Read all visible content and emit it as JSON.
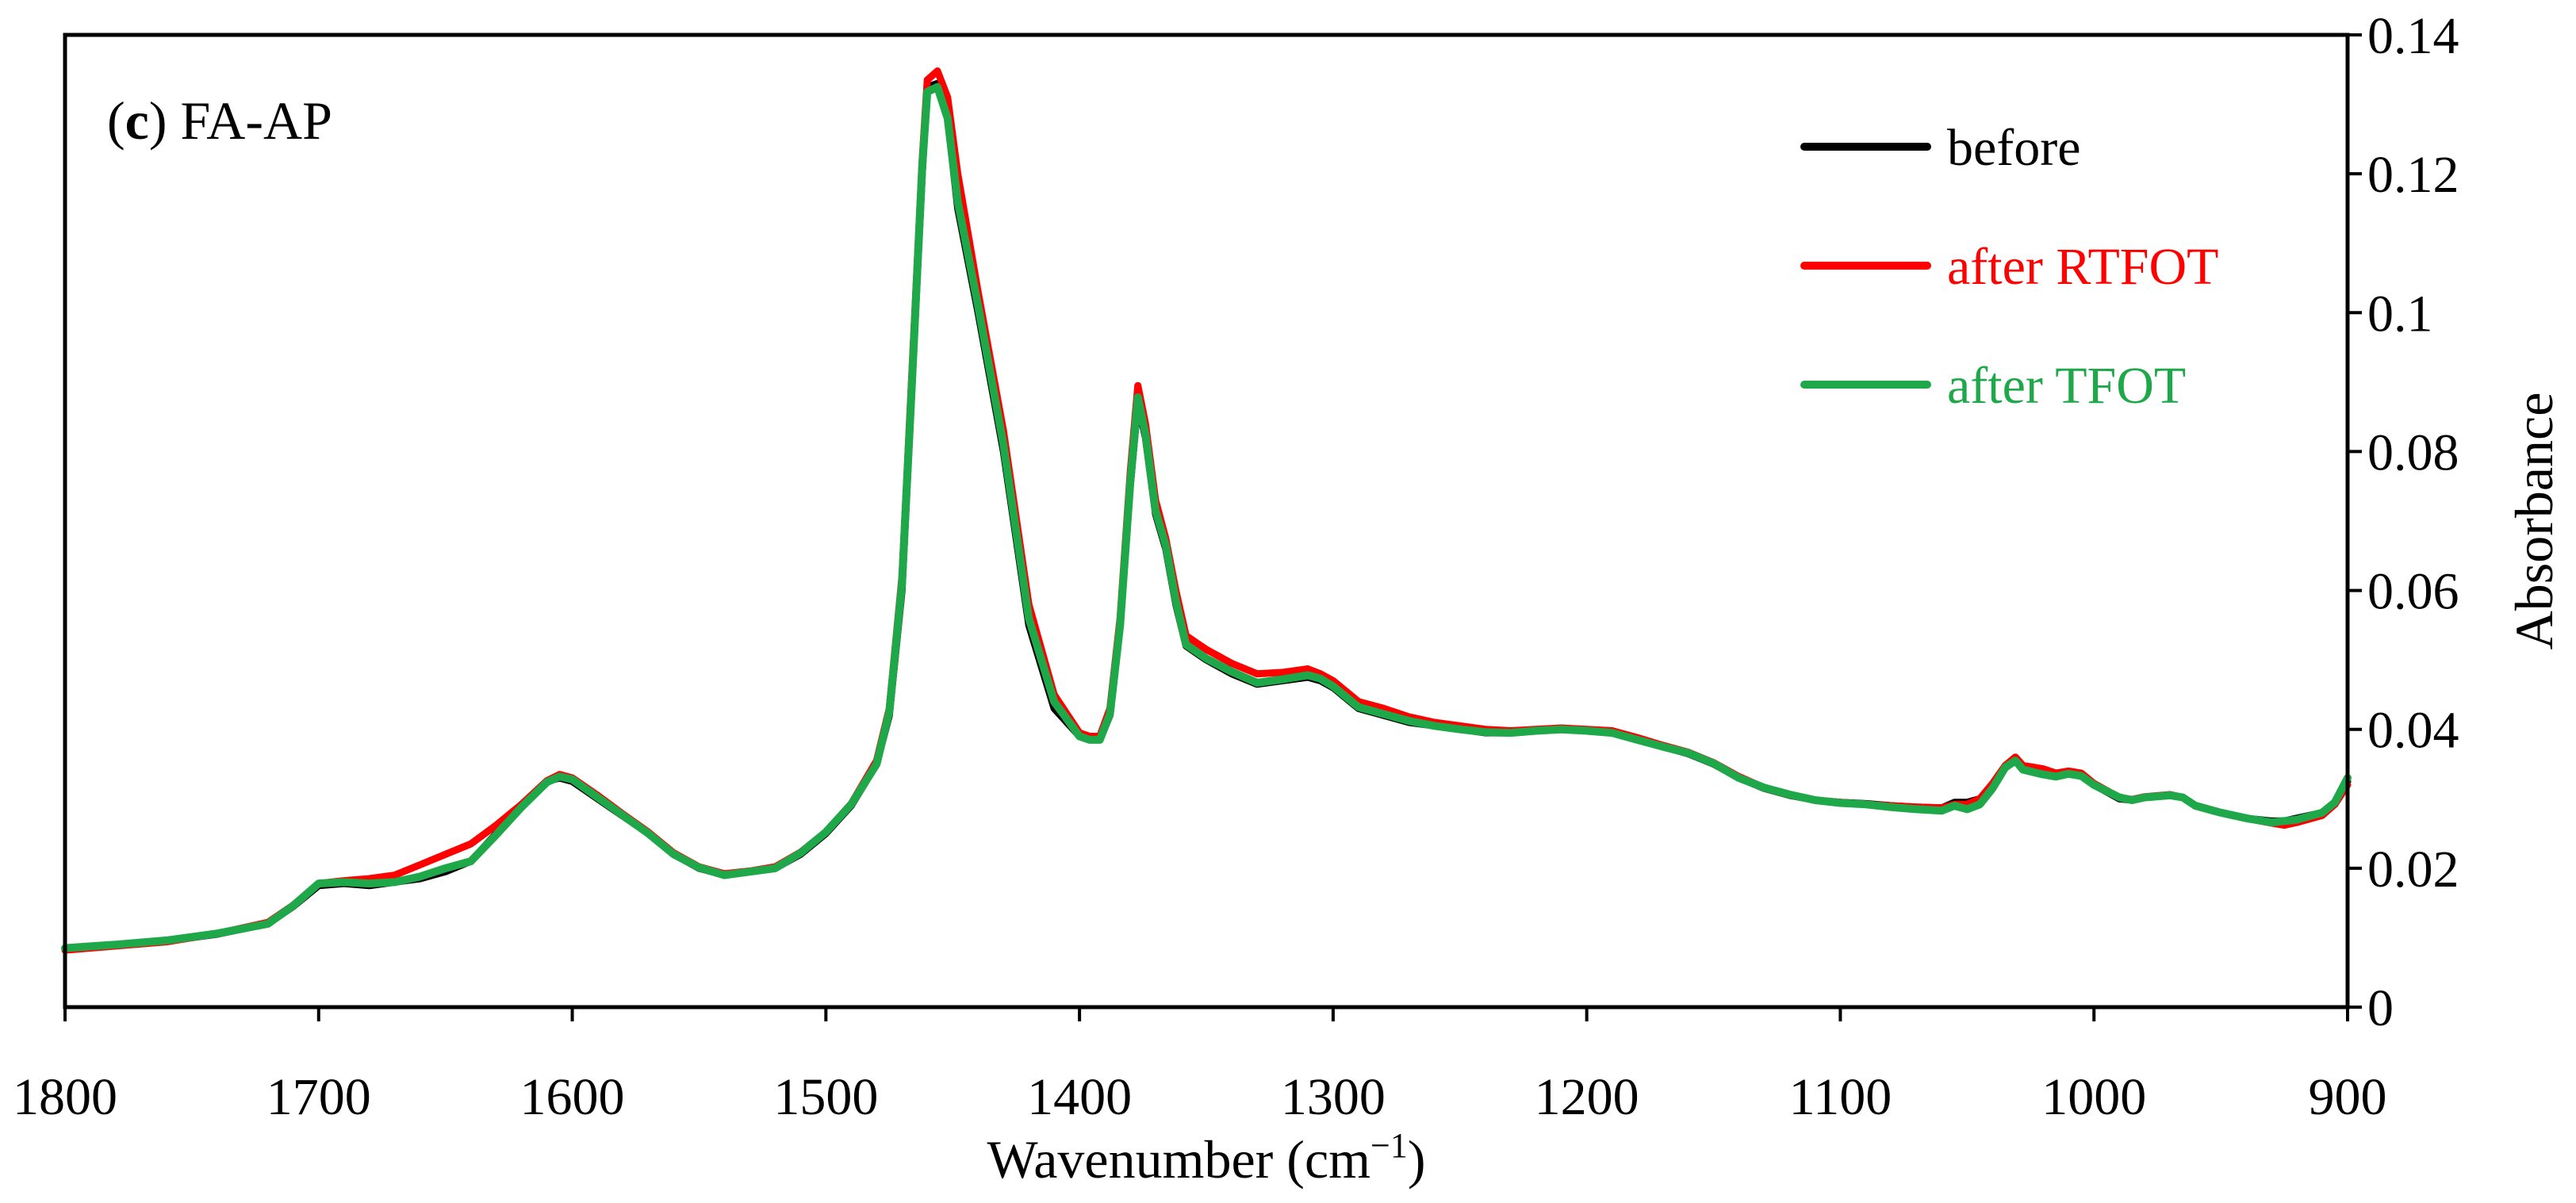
{
  "chart_data": {
    "type": "line",
    "panel_label": "c",
    "panel_title": "FA-AP",
    "xlabel": "Wavenumber (cm",
    "xlabel_superscript": "−1",
    "xlabel_suffix": ")",
    "ylabel": "Absorbance",
    "x_reversed": true,
    "xlim": [
      1800,
      900
    ],
    "ylim": [
      0,
      0.14
    ],
    "x_ticks": [
      1800,
      1700,
      1600,
      1500,
      1400,
      1300,
      1200,
      1100,
      1000,
      900
    ],
    "x_tick_labels": [
      "1800",
      "1700",
      "1600",
      "1500",
      "1400",
      "1300",
      "1200",
      "1100",
      "1000",
      "900"
    ],
    "y_ticks": [
      0,
      0.02,
      0.04,
      0.06,
      0.08,
      0.1,
      0.12,
      0.14
    ],
    "y_tick_labels": [
      "0",
      "0.02",
      "0.04",
      "0.06",
      "0.08",
      "0.1",
      "0.12",
      "0.14"
    ],
    "grid": false,
    "legend_position": "top-right",
    "series": [
      {
        "name": "before",
        "color": "#000000",
        "x": [
          1800,
          1780,
          1760,
          1740,
          1720,
          1710,
          1700,
          1690,
          1680,
          1670,
          1660,
          1650,
          1640,
          1630,
          1620,
          1610,
          1605,
          1600,
          1590,
          1580,
          1570,
          1560,
          1550,
          1540,
          1530,
          1520,
          1510,
          1500,
          1490,
          1480,
          1475,
          1470,
          1466,
          1462,
          1460,
          1456,
          1452,
          1448,
          1440,
          1430,
          1420,
          1410,
          1400,
          1396,
          1392,
          1388,
          1384,
          1380,
          1377,
          1374,
          1370,
          1366,
          1362,
          1358,
          1354,
          1350,
          1340,
          1330,
          1320,
          1310,
          1305,
          1300,
          1290,
          1280,
          1270,
          1260,
          1250,
          1240,
          1230,
          1220,
          1210,
          1200,
          1190,
          1180,
          1170,
          1160,
          1150,
          1140,
          1130,
          1120,
          1110,
          1100,
          1090,
          1080,
          1070,
          1060,
          1055,
          1050,
          1045,
          1040,
          1035,
          1031,
          1028,
          1020,
          1015,
          1010,
          1005,
          1000,
          990,
          985,
          980,
          970,
          965,
          960,
          950,
          940,
          930,
          925,
          920,
          910,
          905,
          900
        ],
        "y": [
          0.0085,
          0.009,
          0.0095,
          0.0105,
          0.012,
          0.0145,
          0.0175,
          0.0178,
          0.0175,
          0.018,
          0.0185,
          0.0195,
          0.021,
          0.025,
          0.029,
          0.0325,
          0.033,
          0.0325,
          0.03,
          0.0275,
          0.025,
          0.022,
          0.02,
          0.019,
          0.0195,
          0.02,
          0.022,
          0.025,
          0.029,
          0.035,
          0.042,
          0.06,
          0.09,
          0.12,
          0.1325,
          0.133,
          0.128,
          0.115,
          0.1,
          0.08,
          0.055,
          0.043,
          0.039,
          0.0385,
          0.0385,
          0.042,
          0.055,
          0.075,
          0.087,
          0.082,
          0.071,
          0.066,
          0.058,
          0.052,
          0.051,
          0.05,
          0.048,
          0.0465,
          0.047,
          0.0475,
          0.047,
          0.046,
          0.043,
          0.042,
          0.041,
          0.0405,
          0.04,
          0.0395,
          0.0395,
          0.0398,
          0.04,
          0.0398,
          0.0395,
          0.0385,
          0.0375,
          0.0365,
          0.035,
          0.033,
          0.0315,
          0.0305,
          0.0298,
          0.0295,
          0.0293,
          0.029,
          0.0288,
          0.0287,
          0.0295,
          0.0295,
          0.03,
          0.032,
          0.0345,
          0.0358,
          0.0345,
          0.034,
          0.0333,
          0.0338,
          0.0335,
          0.032,
          0.03,
          0.0298,
          0.0302,
          0.0305,
          0.0302,
          0.029,
          0.028,
          0.0272,
          0.0268,
          0.0268,
          0.0272,
          0.028,
          0.0295,
          0.0325
        ]
      },
      {
        "name": "after RTFOT",
        "color": "#ff0000",
        "x": [
          1800,
          1780,
          1760,
          1740,
          1720,
          1710,
          1700,
          1690,
          1680,
          1670,
          1660,
          1650,
          1640,
          1630,
          1620,
          1610,
          1605,
          1600,
          1590,
          1580,
          1570,
          1560,
          1550,
          1540,
          1530,
          1520,
          1510,
          1500,
          1490,
          1480,
          1475,
          1470,
          1466,
          1462,
          1460,
          1456,
          1452,
          1448,
          1440,
          1430,
          1420,
          1410,
          1400,
          1396,
          1392,
          1388,
          1384,
          1380,
          1377,
          1374,
          1370,
          1366,
          1362,
          1358,
          1354,
          1350,
          1340,
          1330,
          1320,
          1310,
          1305,
          1300,
          1290,
          1280,
          1270,
          1260,
          1250,
          1240,
          1230,
          1220,
          1210,
          1200,
          1190,
          1180,
          1170,
          1160,
          1150,
          1140,
          1130,
          1120,
          1110,
          1100,
          1090,
          1080,
          1070,
          1060,
          1055,
          1050,
          1045,
          1040,
          1035,
          1031,
          1028,
          1020,
          1015,
          1010,
          1005,
          1000,
          990,
          985,
          980,
          970,
          965,
          960,
          950,
          940,
          930,
          925,
          920,
          910,
          905,
          900
        ],
        "y": [
          0.0082,
          0.0088,
          0.0094,
          0.0106,
          0.0122,
          0.0147,
          0.0178,
          0.0182,
          0.0185,
          0.019,
          0.0205,
          0.022,
          0.0235,
          0.0262,
          0.0292,
          0.0326,
          0.0335,
          0.033,
          0.0305,
          0.0278,
          0.0252,
          0.0222,
          0.0202,
          0.0192,
          0.0196,
          0.0202,
          0.0223,
          0.0252,
          0.0293,
          0.0355,
          0.043,
          0.062,
          0.092,
          0.122,
          0.1335,
          0.1348,
          0.131,
          0.12,
          0.103,
          0.083,
          0.058,
          0.045,
          0.0395,
          0.039,
          0.039,
          0.043,
          0.056,
          0.077,
          0.0895,
          0.084,
          0.073,
          0.0675,
          0.06,
          0.0535,
          0.0525,
          0.0515,
          0.0495,
          0.048,
          0.0482,
          0.0487,
          0.048,
          0.047,
          0.044,
          0.043,
          0.0418,
          0.041,
          0.0405,
          0.04,
          0.0398,
          0.04,
          0.0402,
          0.04,
          0.0398,
          0.0388,
          0.0377,
          0.0367,
          0.0352,
          0.0332,
          0.0316,
          0.0306,
          0.0298,
          0.0295,
          0.0292,
          0.029,
          0.0288,
          0.0287,
          0.0292,
          0.0292,
          0.03,
          0.0322,
          0.0348,
          0.036,
          0.0348,
          0.0343,
          0.0337,
          0.034,
          0.0337,
          0.0322,
          0.0302,
          0.0299,
          0.0303,
          0.0306,
          0.0302,
          0.029,
          0.028,
          0.0272,
          0.0265,
          0.0262,
          0.0266,
          0.0276,
          0.0292,
          0.032
        ]
      },
      {
        "name": "after TFOT",
        "color": "#1fa84a",
        "x": [
          1800,
          1780,
          1760,
          1740,
          1720,
          1710,
          1700,
          1690,
          1680,
          1670,
          1660,
          1650,
          1640,
          1630,
          1620,
          1610,
          1605,
          1600,
          1590,
          1580,
          1570,
          1560,
          1550,
          1540,
          1530,
          1520,
          1510,
          1500,
          1490,
          1480,
          1475,
          1470,
          1466,
          1462,
          1460,
          1456,
          1452,
          1448,
          1440,
          1430,
          1420,
          1410,
          1400,
          1396,
          1392,
          1388,
          1384,
          1380,
          1377,
          1374,
          1370,
          1366,
          1362,
          1358,
          1354,
          1350,
          1340,
          1330,
          1320,
          1310,
          1305,
          1300,
          1290,
          1280,
          1270,
          1260,
          1250,
          1240,
          1230,
          1220,
          1210,
          1200,
          1190,
          1180,
          1170,
          1160,
          1150,
          1140,
          1130,
          1120,
          1110,
          1100,
          1090,
          1080,
          1070,
          1060,
          1055,
          1050,
          1045,
          1040,
          1035,
          1031,
          1028,
          1020,
          1015,
          1010,
          1005,
          1000,
          990,
          985,
          980,
          970,
          965,
          960,
          950,
          940,
          930,
          925,
          920,
          910,
          905,
          900
        ],
        "y": [
          0.0085,
          0.009,
          0.0096,
          0.0106,
          0.012,
          0.0146,
          0.0178,
          0.018,
          0.0178,
          0.018,
          0.0188,
          0.02,
          0.021,
          0.0248,
          0.0288,
          0.0324,
          0.0332,
          0.0328,
          0.0302,
          0.0276,
          0.025,
          0.022,
          0.0201,
          0.019,
          0.0195,
          0.02,
          0.0222,
          0.0252,
          0.0292,
          0.035,
          0.0425,
          0.061,
          0.0905,
          0.121,
          0.1318,
          0.1325,
          0.128,
          0.116,
          0.101,
          0.081,
          0.056,
          0.044,
          0.039,
          0.0385,
          0.0385,
          0.0422,
          0.055,
          0.0755,
          0.0878,
          0.0825,
          0.0715,
          0.0665,
          0.0585,
          0.0522,
          0.0512,
          0.0502,
          0.0483,
          0.0467,
          0.0472,
          0.0478,
          0.0473,
          0.0462,
          0.0432,
          0.0422,
          0.0412,
          0.0405,
          0.04,
          0.0396,
          0.0395,
          0.0398,
          0.04,
          0.0398,
          0.0395,
          0.0385,
          0.0375,
          0.0366,
          0.0351,
          0.033,
          0.0316,
          0.0306,
          0.0298,
          0.0294,
          0.0292,
          0.0288,
          0.0285,
          0.0283,
          0.029,
          0.0285,
          0.0292,
          0.0315,
          0.0345,
          0.0355,
          0.0342,
          0.0335,
          0.0332,
          0.0336,
          0.0333,
          0.032,
          0.0302,
          0.0298,
          0.0302,
          0.0305,
          0.0302,
          0.029,
          0.028,
          0.0272,
          0.0266,
          0.0268,
          0.027,
          0.028,
          0.0295,
          0.033
        ]
      }
    ]
  }
}
